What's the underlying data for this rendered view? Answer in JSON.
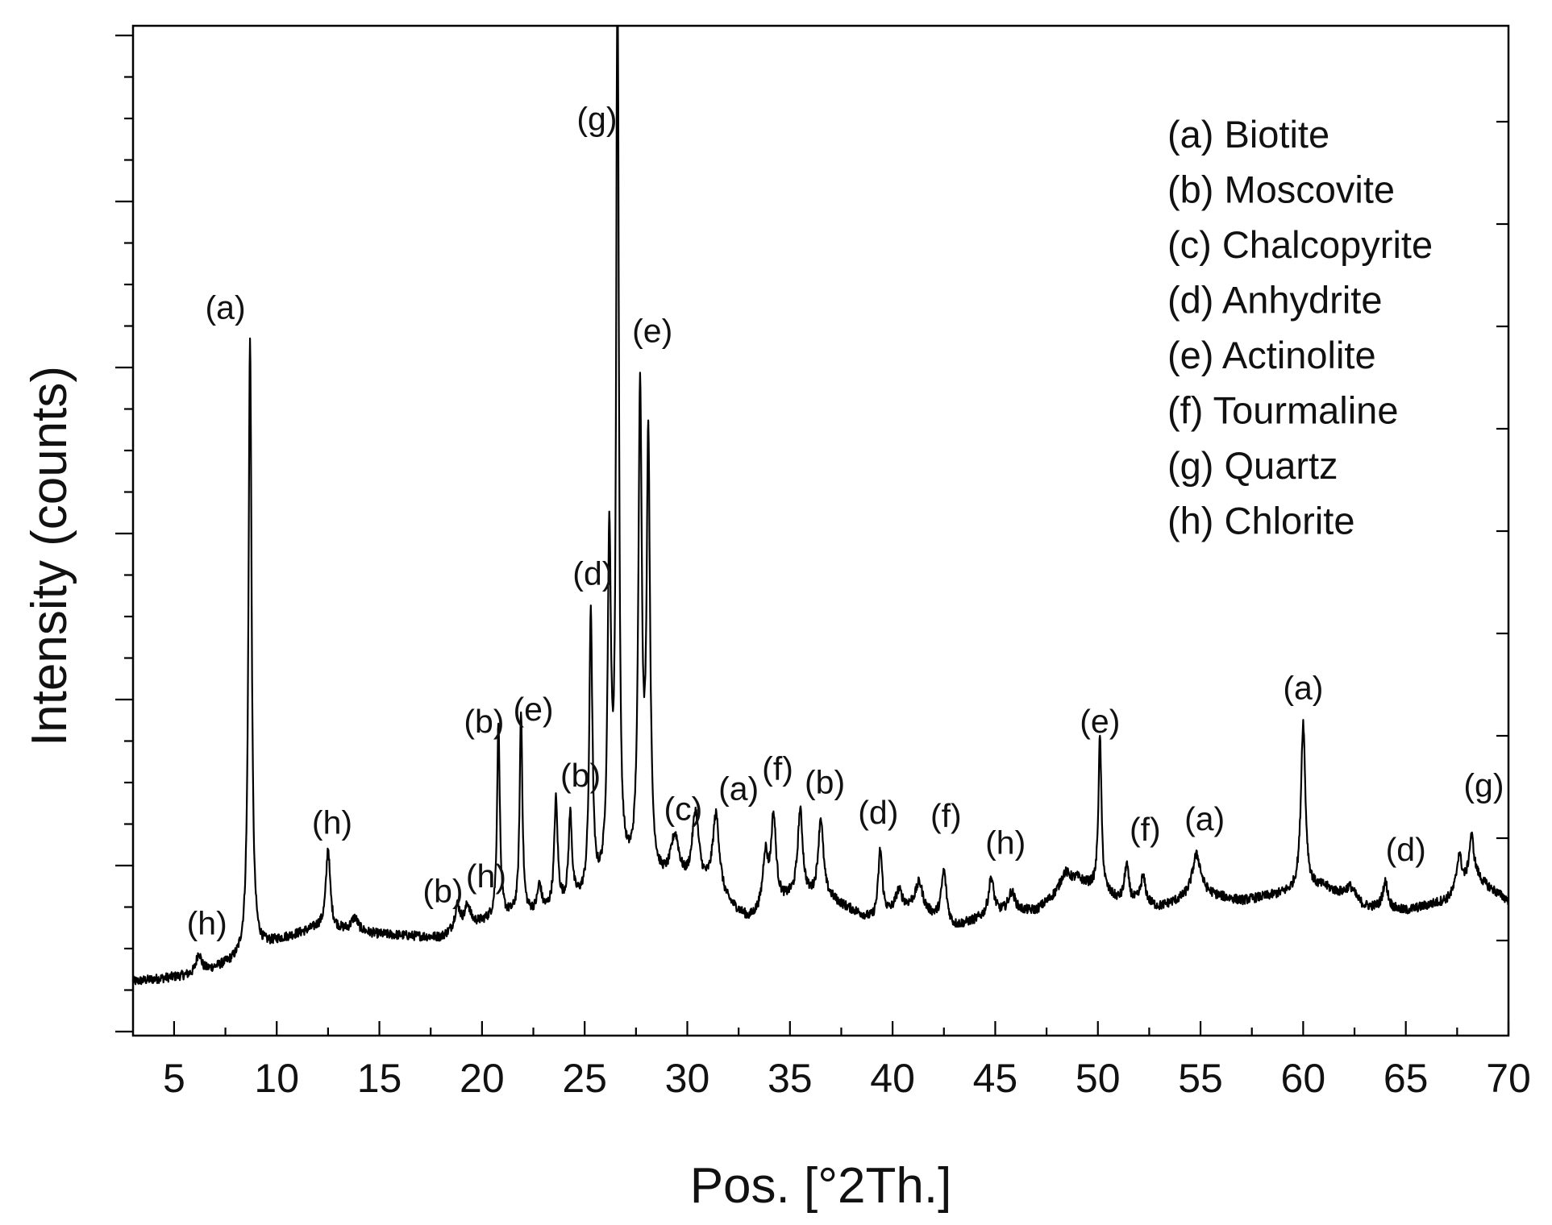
{
  "chart_data": {
    "type": "line",
    "title": "",
    "xlabel": "Pos. [°2Th.]",
    "ylabel": "Intensity (counts)",
    "xlim": [
      3,
      70
    ],
    "ylim": [
      0,
      1500
    ],
    "x_ticks": [
      5,
      10,
      15,
      20,
      25,
      30,
      35,
      40,
      45,
      50,
      55,
      60,
      65,
      70
    ],
    "x_tick_labels": [
      "5",
      "10",
      "15",
      "20",
      "25",
      "30",
      "35",
      "40",
      "45",
      "50",
      "55",
      "60",
      "65",
      "70"
    ],
    "y_tick_labels_visible": false,
    "grid": false,
    "legend_position": "top-right",
    "legend": [
      "(a) Biotite",
      "(b) Moscovite",
      "(c) Chalcopyrite",
      "(d) Anhydrite",
      "(e) Actinolite",
      "(f) Tourmaline",
      "(g) Quartz",
      "(h) Chlorite"
    ],
    "series": [
      {
        "color": "#000000",
        "baseline": [
          [
            3,
            80
          ],
          [
            6,
            90
          ],
          [
            8,
            110
          ],
          [
            10,
            140
          ],
          [
            12,
            160
          ],
          [
            15,
            150
          ],
          [
            18,
            145
          ],
          [
            19,
            160
          ],
          [
            21,
            175
          ],
          [
            23,
            180
          ],
          [
            25,
            200
          ],
          [
            27,
            230
          ],
          [
            29,
            220
          ],
          [
            31,
            210
          ],
          [
            33,
            170
          ],
          [
            35,
            200
          ],
          [
            37,
            200
          ],
          [
            39,
            170
          ],
          [
            41,
            190
          ],
          [
            43,
            160
          ],
          [
            45,
            180
          ],
          [
            47,
            185
          ],
          [
            49,
            230
          ],
          [
            51,
            200
          ],
          [
            53,
            190
          ],
          [
            55,
            210
          ],
          [
            57,
            200
          ],
          [
            59,
            210
          ],
          [
            61,
            220
          ],
          [
            63,
            190
          ],
          [
            65,
            185
          ],
          [
            67,
            200
          ],
          [
            68.5,
            230
          ],
          [
            70,
            200
          ]
        ],
        "peaks": [
          {
            "x": 6.2,
            "height": 30,
            "width": 0.15
          },
          {
            "x": 8.7,
            "height": 920,
            "width": 0.09
          },
          {
            "x": 12.5,
            "height": 120,
            "width": 0.12
          },
          {
            "x": 13.8,
            "height": 20,
            "width": 0.2
          },
          {
            "x": 18.8,
            "height": 35,
            "width": 0.15
          },
          {
            "x": 19.3,
            "height": 30,
            "width": 0.15
          },
          {
            "x": 20.8,
            "height": 290,
            "width": 0.08
          },
          {
            "x": 21.9,
            "height": 300,
            "width": 0.08
          },
          {
            "x": 22.8,
            "height": 40,
            "width": 0.12
          },
          {
            "x": 23.6,
            "height": 160,
            "width": 0.1
          },
          {
            "x": 24.3,
            "height": 130,
            "width": 0.1
          },
          {
            "x": 25.3,
            "height": 420,
            "width": 0.09
          },
          {
            "x": 26.2,
            "height": 500,
            "width": 0.1
          },
          {
            "x": 26.6,
            "height": 1470,
            "width": 0.07
          },
          {
            "x": 27.7,
            "height": 715,
            "width": 0.1
          },
          {
            "x": 28.1,
            "height": 640,
            "width": 0.1
          },
          {
            "x": 29.4,
            "height": 70,
            "width": 0.25
          },
          {
            "x": 30.4,
            "height": 110,
            "width": 0.2
          },
          {
            "x": 31.4,
            "height": 120,
            "width": 0.2
          },
          {
            "x": 33.8,
            "height": 80,
            "width": 0.15
          },
          {
            "x": 34.2,
            "height": 130,
            "width": 0.15
          },
          {
            "x": 35.5,
            "height": 130,
            "width": 0.15
          },
          {
            "x": 36.5,
            "height": 120,
            "width": 0.15
          },
          {
            "x": 39.4,
            "height": 100,
            "width": 0.12
          },
          {
            "x": 40.3,
            "height": 30,
            "width": 0.2
          },
          {
            "x": 41.3,
            "height": 40,
            "width": 0.2
          },
          {
            "x": 42.5,
            "height": 75,
            "width": 0.15
          },
          {
            "x": 44.8,
            "height": 55,
            "width": 0.15
          },
          {
            "x": 45.8,
            "height": 30,
            "width": 0.2
          },
          {
            "x": 48.4,
            "height": 25,
            "width": 0.3
          },
          {
            "x": 50.1,
            "height": 230,
            "width": 0.09
          },
          {
            "x": 51.4,
            "height": 55,
            "width": 0.12
          },
          {
            "x": 52.2,
            "height": 40,
            "width": 0.15
          },
          {
            "x": 54.8,
            "height": 60,
            "width": 0.25
          },
          {
            "x": 60.0,
            "height": 250,
            "width": 0.13
          },
          {
            "x": 62.3,
            "height": 20,
            "width": 0.3
          },
          {
            "x": 64.0,
            "height": 40,
            "width": 0.15
          },
          {
            "x": 67.6,
            "height": 55,
            "width": 0.15
          },
          {
            "x": 68.2,
            "height": 70,
            "width": 0.15
          }
        ]
      }
    ],
    "annotations": [
      {
        "text": "(h)",
        "x": 6.6,
        "y": 150
      },
      {
        "text": "(a)",
        "x": 7.5,
        "y": 1065
      },
      {
        "text": "(h)",
        "x": 12.7,
        "y": 300
      },
      {
        "text": "(b)",
        "x": 18.1,
        "y": 198
      },
      {
        "text": "(h)",
        "x": 20.2,
        "y": 220
      },
      {
        "text": "(b)",
        "x": 20.1,
        "y": 450
      },
      {
        "text": "(e)",
        "x": 22.5,
        "y": 468
      },
      {
        "text": "(b)",
        "x": 24.8,
        "y": 370
      },
      {
        "text": "(d)",
        "x": 25.4,
        "y": 670
      },
      {
        "text": "(g)",
        "x": 25.6,
        "y": 1345
      },
      {
        "text": "(e)",
        "x": 28.3,
        "y": 1030
      },
      {
        "text": "(c)",
        "x": 29.8,
        "y": 320
      },
      {
        "text": "(a)",
        "x": 32.5,
        "y": 350
      },
      {
        "text": "(f)",
        "x": 34.4,
        "y": 380
      },
      {
        "text": "(b)",
        "x": 36.7,
        "y": 360
      },
      {
        "text": "(d)",
        "x": 39.3,
        "y": 315
      },
      {
        "text": "(f)",
        "x": 42.6,
        "y": 310
      },
      {
        "text": "(h)",
        "x": 45.5,
        "y": 270
      },
      {
        "text": "(e)",
        "x": 50.1,
        "y": 450
      },
      {
        "text": "(f)",
        "x": 52.3,
        "y": 290
      },
      {
        "text": "(a)",
        "x": 55.2,
        "y": 305
      },
      {
        "text": "(a)",
        "x": 60.0,
        "y": 500
      },
      {
        "text": "(d)",
        "x": 65.0,
        "y": 260
      },
      {
        "text": "(g)",
        "x": 68.8,
        "y": 355
      }
    ]
  }
}
